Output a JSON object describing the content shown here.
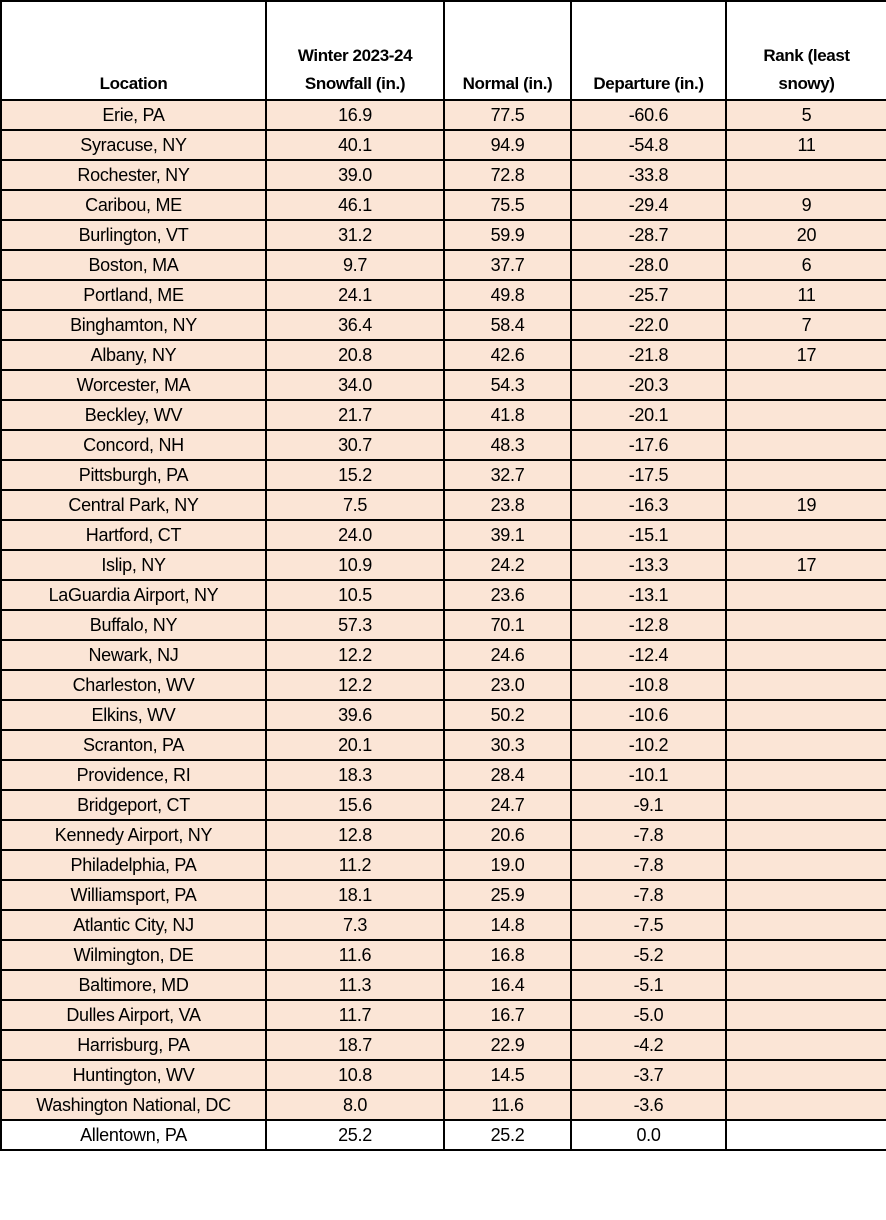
{
  "chart_data": {
    "type": "table",
    "shaded_row_color": "#fbe5d6",
    "columns": [
      "Location",
      "Winter 2023-24 Snowfall (in.)",
      "Normal (in.)",
      "Departure (in.)",
      "Rank (least snowy)"
    ],
    "header_lines": [
      [
        "Location"
      ],
      [
        "Winter 2023-24",
        "Snowfall (in.)"
      ],
      [
        "Normal (in.)"
      ],
      [
        "Departure (in.)"
      ],
      [
        "Rank (least",
        "snowy)"
      ]
    ],
    "rows": [
      [
        "Erie, PA",
        "16.9",
        "77.5",
        "-60.6",
        "5"
      ],
      [
        "Syracuse, NY",
        "40.1",
        "94.9",
        "-54.8",
        "11"
      ],
      [
        "Rochester, NY",
        "39.0",
        "72.8",
        "-33.8",
        ""
      ],
      [
        "Caribou, ME",
        "46.1",
        "75.5",
        "-29.4",
        "9"
      ],
      [
        "Burlington, VT",
        "31.2",
        "59.9",
        "-28.7",
        "20"
      ],
      [
        "Boston, MA",
        "9.7",
        "37.7",
        "-28.0",
        "6"
      ],
      [
        "Portland, ME",
        "24.1",
        "49.8",
        "-25.7",
        "11"
      ],
      [
        "Binghamton, NY",
        "36.4",
        "58.4",
        "-22.0",
        "7"
      ],
      [
        "Albany, NY",
        "20.8",
        "42.6",
        "-21.8",
        "17"
      ],
      [
        "Worcester, MA",
        "34.0",
        "54.3",
        "-20.3",
        ""
      ],
      [
        "Beckley, WV",
        "21.7",
        "41.8",
        "-20.1",
        ""
      ],
      [
        "Concord, NH",
        "30.7",
        "48.3",
        "-17.6",
        ""
      ],
      [
        "Pittsburgh, PA",
        "15.2",
        "32.7",
        "-17.5",
        ""
      ],
      [
        "Central Park, NY",
        "7.5",
        "23.8",
        "-16.3",
        "19"
      ],
      [
        "Hartford, CT",
        "24.0",
        "39.1",
        "-15.1",
        ""
      ],
      [
        "Islip, NY",
        "10.9",
        "24.2",
        "-13.3",
        "17"
      ],
      [
        "LaGuardia Airport, NY",
        "10.5",
        "23.6",
        "-13.1",
        ""
      ],
      [
        "Buffalo, NY",
        "57.3",
        "70.1",
        "-12.8",
        ""
      ],
      [
        "Newark, NJ",
        "12.2",
        "24.6",
        "-12.4",
        ""
      ],
      [
        "Charleston, WV",
        "12.2",
        "23.0",
        "-10.8",
        ""
      ],
      [
        "Elkins, WV",
        "39.6",
        "50.2",
        "-10.6",
        ""
      ],
      [
        "Scranton, PA",
        "20.1",
        "30.3",
        "-10.2",
        ""
      ],
      [
        "Providence, RI",
        "18.3",
        "28.4",
        "-10.1",
        ""
      ],
      [
        "Bridgeport, CT",
        "15.6",
        "24.7",
        "-9.1",
        ""
      ],
      [
        "Kennedy Airport, NY",
        "12.8",
        "20.6",
        "-7.8",
        ""
      ],
      [
        "Philadelphia, PA",
        "11.2",
        "19.0",
        "-7.8",
        ""
      ],
      [
        "Williamsport, PA",
        "18.1",
        "25.9",
        "-7.8",
        ""
      ],
      [
        "Atlantic City, NJ",
        "7.3",
        "14.8",
        "-7.5",
        ""
      ],
      [
        "Wilmington, DE",
        "11.6",
        "16.8",
        "-5.2",
        ""
      ],
      [
        "Baltimore, MD",
        "11.3",
        "16.4",
        "-5.1",
        ""
      ],
      [
        "Dulles Airport, VA",
        "11.7",
        "16.7",
        "-5.0",
        ""
      ],
      [
        "Harrisburg, PA",
        "18.7",
        "22.9",
        "-4.2",
        ""
      ],
      [
        "Huntington, WV",
        "10.8",
        "14.5",
        "-3.7",
        ""
      ],
      [
        "Washington National, DC",
        "8.0",
        "11.6",
        "-3.6",
        ""
      ],
      [
        "Allentown, PA",
        "25.2",
        "25.2",
        "0.0",
        ""
      ]
    ]
  }
}
